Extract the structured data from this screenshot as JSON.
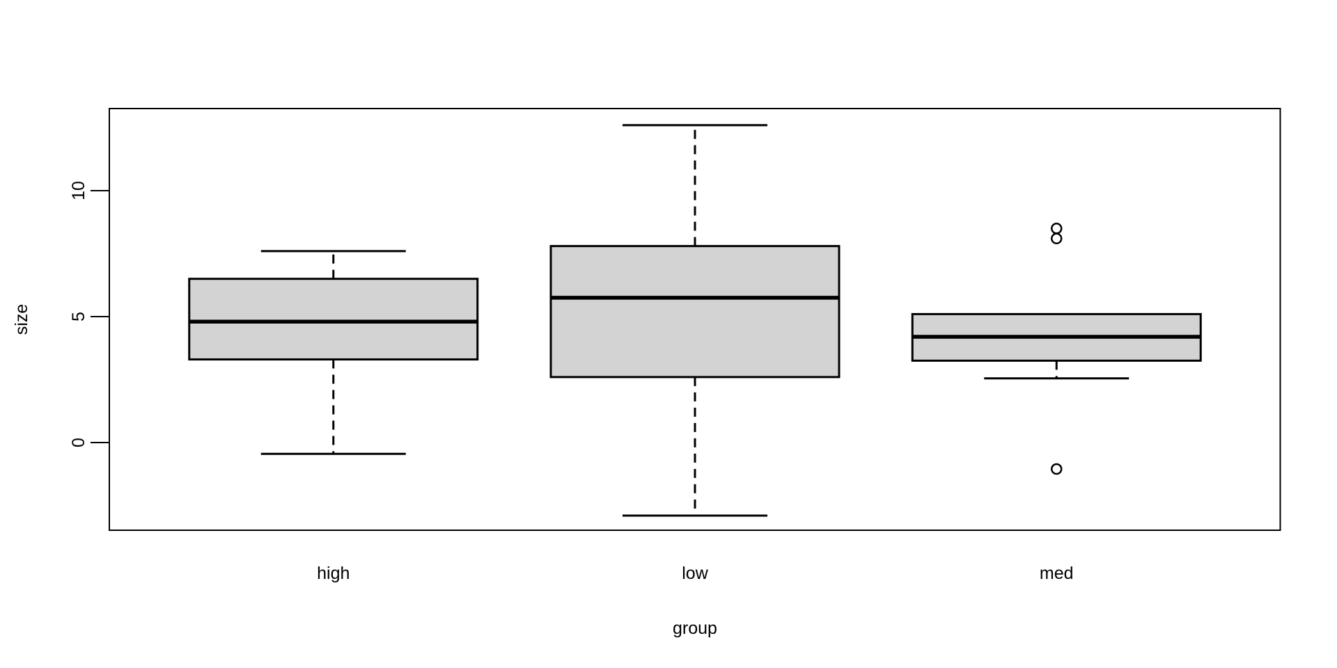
{
  "chart_data": {
    "type": "boxplot",
    "title": "",
    "xlabel": "group",
    "ylabel": "size",
    "categories": [
      "high",
      "low",
      "med"
    ],
    "y_ticks": [
      0,
      5,
      10
    ],
    "ylim": [
      -3.5,
      13.3
    ],
    "grid": false,
    "legend": "none",
    "series": [
      {
        "name": "high",
        "lower_whisker": -0.45,
        "q1": 3.3,
        "median": 4.8,
        "q3": 6.5,
        "upper_whisker": 7.6,
        "outliers": []
      },
      {
        "name": "low",
        "lower_whisker": -2.9,
        "q1": 2.6,
        "median": 5.75,
        "q3": 7.8,
        "upper_whisker": 12.6,
        "outliers": []
      },
      {
        "name": "med",
        "lower_whisker": 2.55,
        "q1": 3.25,
        "median": 4.2,
        "q3": 5.1,
        "upper_whisker": 5.1,
        "outliers": [
          8.5,
          8.1,
          -1.05
        ]
      }
    ],
    "colors": {
      "box_fill": "#d3d3d3",
      "line": "#000000",
      "background": "#ffffff"
    }
  }
}
